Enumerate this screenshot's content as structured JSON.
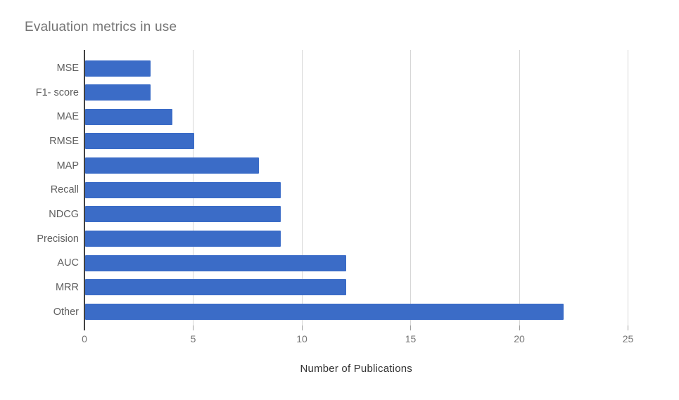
{
  "title": "Evaluation metrics in use",
  "chart_data": {
    "type": "bar",
    "orientation": "horizontal",
    "title": "Evaluation metrics in use",
    "xlabel": "Number of Publications",
    "ylabel": "",
    "categories": [
      "MSE",
      "F1- score",
      "MAE",
      "RMSE",
      "MAP",
      "Recall",
      "NDCG",
      "Precision",
      "AUC",
      "MRR",
      "Other"
    ],
    "values": [
      3,
      3,
      4,
      5,
      8,
      9,
      9,
      9,
      12,
      12,
      22
    ],
    "xlim": [
      0,
      25
    ],
    "xticks": [
      0,
      5,
      10,
      15,
      20,
      25
    ],
    "grid": true,
    "legend_position": "none",
    "colors": {
      "bar": "#3b6cc7",
      "title_text": "#757575",
      "category_text": "#5f5f5f",
      "tick_text": "#757575",
      "axis_title_text": "#333333",
      "gridline": "#d6d6d6",
      "axis_line": "#424242",
      "background": "#ffffff"
    }
  }
}
